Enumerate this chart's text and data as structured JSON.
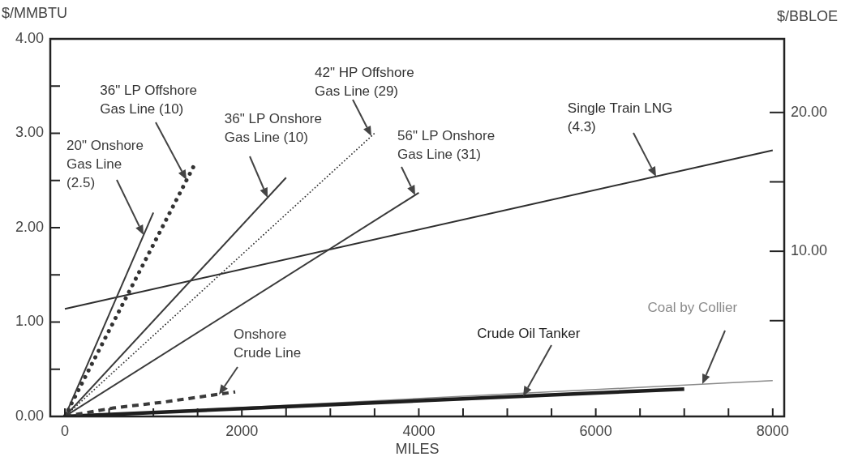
{
  "chart_data": {
    "type": "line",
    "xlabel": "MILES",
    "ylabel": "$/MMBTU",
    "y2label": "$/BBLOE",
    "xlim": [
      -165,
      8130
    ],
    "ylim": [
      0,
      4
    ],
    "y2lim": [
      -1.9,
      25.3
    ],
    "xticks": [
      0,
      {
        "value": 500,
        "label": null
      },
      {
        "value": 1000,
        "label": null
      },
      {
        "value": 1500,
        "label": null
      },
      2000,
      {
        "value": 2500,
        "label": null
      },
      {
        "value": 3000,
        "label": null
      },
      {
        "value": 3500,
        "label": null
      },
      4000,
      {
        "value": 4500,
        "label": null
      },
      {
        "value": 5000,
        "label": null
      },
      {
        "value": 5500,
        "label": null
      },
      6000,
      {
        "value": 6500,
        "label": null
      },
      {
        "value": 7000,
        "label": null
      },
      {
        "value": 7500,
        "label": null
      },
      8000
    ],
    "yticks": [
      {
        "value": 0,
        "label": "0.00"
      },
      {
        "value": 0.5,
        "label": null
      },
      {
        "value": 1,
        "label": "1.00"
      },
      {
        "value": 1.5,
        "label": null
      },
      {
        "value": 2,
        "label": "2.00"
      },
      {
        "value": 2.5,
        "label": null
      },
      {
        "value": 3,
        "label": "3.00"
      },
      {
        "value": 3.5,
        "label": null
      },
      {
        "value": 4,
        "label": "4.00"
      }
    ],
    "y2ticks": [
      {
        "value": 5,
        "label": null
      },
      {
        "value": 10,
        "label": "10.00"
      },
      {
        "value": 15,
        "label": null
      },
      {
        "value": 20,
        "label": "20.00"
      }
    ],
    "grid": false,
    "marker": "none",
    "series": [
      {
        "name": "20\" Onshore Gas Line (2.5)",
        "color": "#3a3a3a",
        "line_style": "solid",
        "x": [
          0,
          1000
        ],
        "values": [
          0,
          2.16
        ]
      },
      {
        "name": "36\" LP Offshore Gas Line (10)",
        "color": "#333333",
        "line_style": "dotted",
        "x": [
          0,
          1450
        ],
        "values": [
          0,
          2.64
        ]
      },
      {
        "name": "36\" LP Onshore Gas Line (10)",
        "color": "#3a3a3a",
        "line_style": "solid",
        "x": [
          0,
          2500
        ],
        "values": [
          0,
          2.53
        ]
      },
      {
        "name": "42\" HP Offshore Gas Line (29)",
        "color": "#333333",
        "line_style": "dotted",
        "x": [
          0,
          3500
        ],
        "values": [
          0,
          3.0
        ]
      },
      {
        "name": "56\" LP Onshore Gas Line (31)",
        "color": "#3a3a3a",
        "line_style": "solid",
        "x": [
          0,
          4000
        ],
        "values": [
          0,
          2.37
        ]
      },
      {
        "name": "Single Train LNG (4.3)",
        "color": "#2e2e2e",
        "line_style": "solid",
        "x": [
          0,
          8000
        ],
        "values": [
          1.14,
          2.82
        ]
      },
      {
        "name": "Onshore Crude Line",
        "color": "#3a3a3a",
        "line_style": "dashed",
        "x": [
          0,
          550,
          1100,
          1925
        ],
        "values": [
          0,
          0.09,
          0.15,
          0.26
        ]
      },
      {
        "name": "Crude Oil Tanker",
        "color": "#1e1e1e",
        "line_style": "solid",
        "x": [
          0,
          7000
        ],
        "values": [
          0,
          0.29
        ]
      },
      {
        "name": "Coal by Collier",
        "color": "#8a8a8a",
        "line_style": "solid",
        "x": [
          0,
          8000
        ],
        "values": [
          0,
          0.38
        ]
      }
    ]
  }
}
